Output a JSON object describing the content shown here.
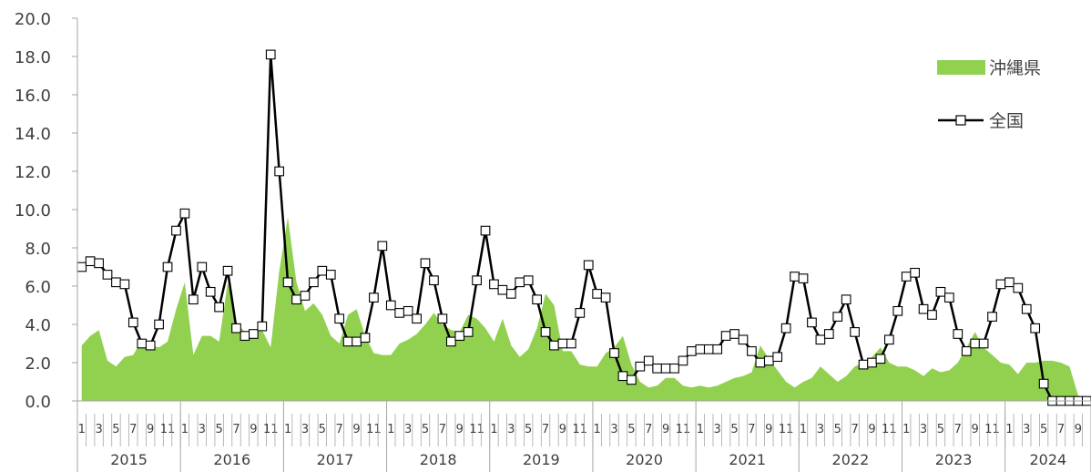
{
  "chart_data": {
    "type": "area",
    "ylim": [
      0,
      20
    ],
    "yticks": [
      "0.0",
      "2.0",
      "4.0",
      "6.0",
      "8.0",
      "10.0",
      "12.0",
      "14.0",
      "16.0",
      "18.0",
      "20.0"
    ],
    "month_ticks": [
      "1",
      "3",
      "5",
      "7",
      "9",
      "11"
    ],
    "years": [
      "2015",
      "2016",
      "2017",
      "2018",
      "2019",
      "2020",
      "2021",
      "2022",
      "2023",
      "2024"
    ],
    "legend_position": "top-right",
    "colors": {
      "okinawa": "#92d050",
      "national": "#000000",
      "axis": "#a6a6a6"
    },
    "series": [
      {
        "name": "沖縄県",
        "type": "area",
        "values": [
          2.9,
          3.4,
          3.7,
          2.1,
          1.8,
          2.3,
          2.4,
          3.2,
          2.9,
          2.8,
          3.1,
          4.8,
          6.2,
          2.4,
          3.4,
          3.4,
          3.1,
          6.2,
          4.1,
          3.6,
          3.5,
          3.7,
          2.8,
          6.8,
          9.6,
          6.2,
          4.7,
          5.1,
          4.5,
          3.4,
          3.0,
          4.5,
          4.8,
          3.4,
          2.5,
          2.4,
          2.4,
          3.0,
          3.2,
          3.5,
          4.0,
          4.6,
          4.0,
          3.7,
          3.6,
          4.5,
          4.3,
          3.8,
          3.1,
          4.3,
          2.9,
          2.3,
          2.7,
          3.8,
          5.6,
          5.0,
          2.6,
          2.6,
          1.9,
          1.8,
          1.8,
          2.5,
          2.8,
          3.4,
          1.9,
          1.0,
          0.7,
          0.8,
          1.2,
          1.2,
          0.8,
          0.7,
          0.8,
          0.7,
          0.8,
          1.0,
          1.2,
          1.3,
          1.5,
          2.9,
          2.2,
          1.6,
          1.0,
          0.7,
          1.0,
          1.2,
          1.8,
          1.4,
          1.0,
          1.3,
          1.8,
          2.0,
          2.3,
          2.8,
          2.0,
          1.8,
          1.8,
          1.6,
          1.3,
          1.7,
          1.5,
          1.6,
          2.0,
          2.8,
          3.6,
          2.8,
          2.4,
          2.0,
          1.9,
          1.4,
          2.0,
          2.0,
          2.1,
          2.1,
          2.0,
          1.8,
          0.3,
          0.0,
          0.0,
          0.0,
          0.0,
          0.0
        ]
      },
      {
        "name": "全国",
        "type": "line",
        "values": [
          7.0,
          7.3,
          7.2,
          6.6,
          6.2,
          6.1,
          4.1,
          3.0,
          2.9,
          4.0,
          7.0,
          8.9,
          9.8,
          5.3,
          7.0,
          5.7,
          4.9,
          6.8,
          3.8,
          3.4,
          3.5,
          3.9,
          18.1,
          12.0,
          6.2,
          5.3,
          5.5,
          6.2,
          6.8,
          6.6,
          4.3,
          3.1,
          3.1,
          3.3,
          5.4,
          8.1,
          5.0,
          4.6,
          4.7,
          4.3,
          7.2,
          6.3,
          4.3,
          3.1,
          3.4,
          3.6,
          6.3,
          8.9,
          6.1,
          5.8,
          5.6,
          6.2,
          6.3,
          5.3,
          3.6,
          2.9,
          3.0,
          3.0,
          4.6,
          7.1,
          5.6,
          5.4,
          2.5,
          1.3,
          1.1,
          1.8,
          2.1,
          1.7,
          1.7,
          1.7,
          2.1,
          2.6,
          2.7,
          2.7,
          2.7,
          3.4,
          3.5,
          3.2,
          2.6,
          2.0,
          2.1,
          2.3,
          3.8,
          6.5,
          6.4,
          4.1,
          3.2,
          3.5,
          4.4,
          5.3,
          3.6,
          1.9,
          2.0,
          2.2,
          3.2,
          4.7,
          6.5,
          6.7,
          4.8,
          4.5,
          5.7,
          5.4,
          3.5,
          2.6,
          3.0,
          3.0,
          4.4,
          6.1,
          6.2,
          5.9,
          4.8,
          3.8,
          0.9,
          0.0,
          0.0,
          0.0,
          0.0,
          0.0
        ]
      }
    ]
  }
}
